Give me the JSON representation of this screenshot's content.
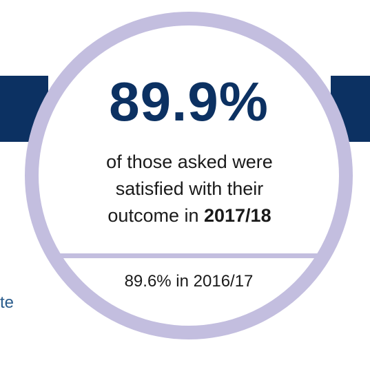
{
  "colors": {
    "navy": "#0c3162",
    "lavender": "#c3bedf",
    "text": "#1a1a1a",
    "fragment_text": "#2a5c8c"
  },
  "stat": {
    "value": "89.9%",
    "caption_line1": "of those asked were",
    "caption_line2": "satisfied with their",
    "caption_line3_prefix": "outcome in ",
    "year": "2017/18",
    "previous": "89.6% in 2016/17"
  },
  "fragment_text": "te"
}
